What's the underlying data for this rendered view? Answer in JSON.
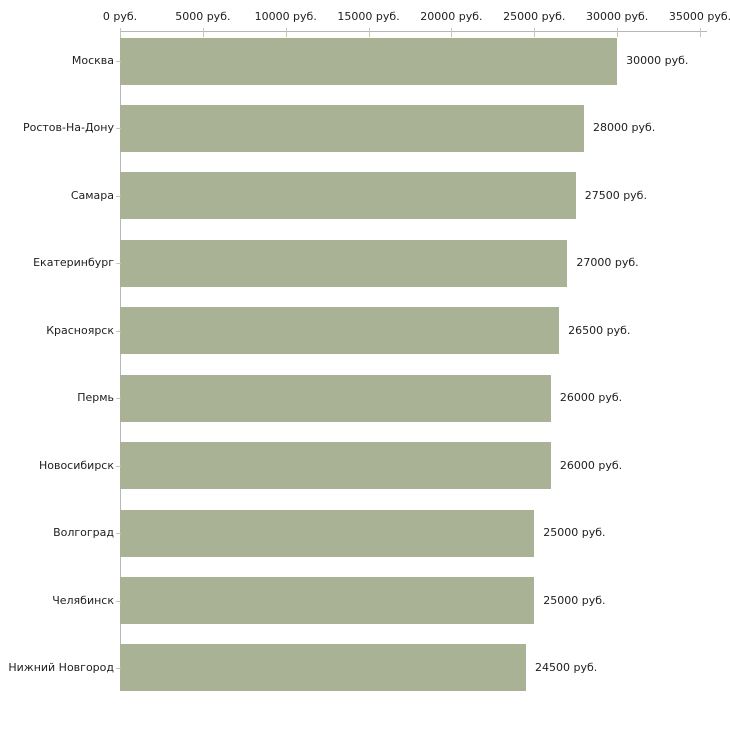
{
  "chart_data": {
    "type": "bar",
    "orientation": "horizontal",
    "title": "",
    "xlabel": "",
    "ylabel": "",
    "xlim": [
      0,
      35000
    ],
    "grid": false,
    "legend": false,
    "x_ticks": [
      {
        "value": 0,
        "label": "0 руб."
      },
      {
        "value": 5000,
        "label": "5000 руб."
      },
      {
        "value": 10000,
        "label": "10000 руб."
      },
      {
        "value": 15000,
        "label": "15000 руб."
      },
      {
        "value": 20000,
        "label": "20000 руб."
      },
      {
        "value": 25000,
        "label": "25000 руб."
      },
      {
        "value": 30000,
        "label": "30000 руб."
      },
      {
        "value": 35000,
        "label": "35000 руб."
      }
    ],
    "categories": [
      "Москва",
      "Ростов-На-Дону",
      "Самара",
      "Екатеринбург",
      "Красноярск",
      "Пермь",
      "Новосибирск",
      "Волгоград",
      "Челябинск",
      "Нижний Новгород"
    ],
    "values": [
      30000,
      28000,
      27500,
      27000,
      26500,
      26000,
      26000,
      25000,
      25000,
      24500
    ],
    "value_labels": [
      "30000 руб.",
      "28000 руб.",
      "27500 руб.",
      "27000 руб.",
      "26500 руб.",
      "26000 руб.",
      "26000 руб.",
      "25000 руб.",
      "25000 руб.",
      "24500 руб."
    ],
    "colors": {
      "bar": "#a9b294",
      "axis_line": "#b7b7b7",
      "tick": "#c9c9a3",
      "text": "#1e1e1e",
      "background": "#ffffff"
    }
  }
}
